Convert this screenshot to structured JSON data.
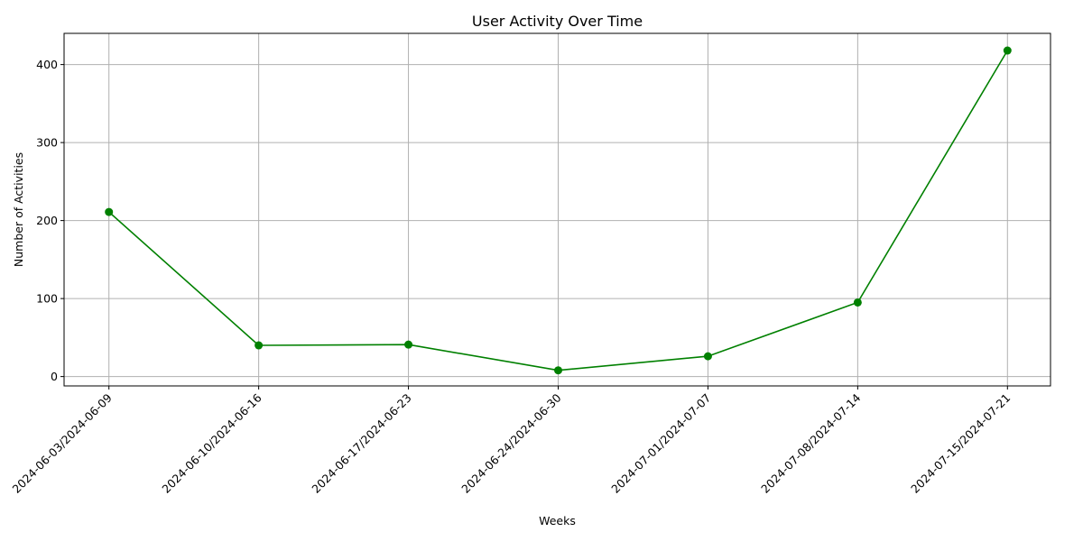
{
  "chart_data": {
    "type": "line",
    "title": "User Activity Over Time",
    "xlabel": "Weeks",
    "ylabel": "Number of Activities",
    "categories": [
      "2024-06-03/2024-06-09",
      "2024-06-10/2024-06-16",
      "2024-06-17/2024-06-23",
      "2024-06-24/2024-06-30",
      "2024-07-01/2024-07-07",
      "2024-07-08/2024-07-14",
      "2024-07-15/2024-07-21"
    ],
    "series": [
      {
        "values": [
          211,
          40,
          41,
          8,
          26,
          95,
          418
        ],
        "color": "#008000",
        "marker": "circle"
      }
    ],
    "ylim": [
      -12,
      440
    ],
    "yticks": [
      0,
      100,
      200,
      300,
      400
    ],
    "grid": true,
    "legend": "none"
  }
}
